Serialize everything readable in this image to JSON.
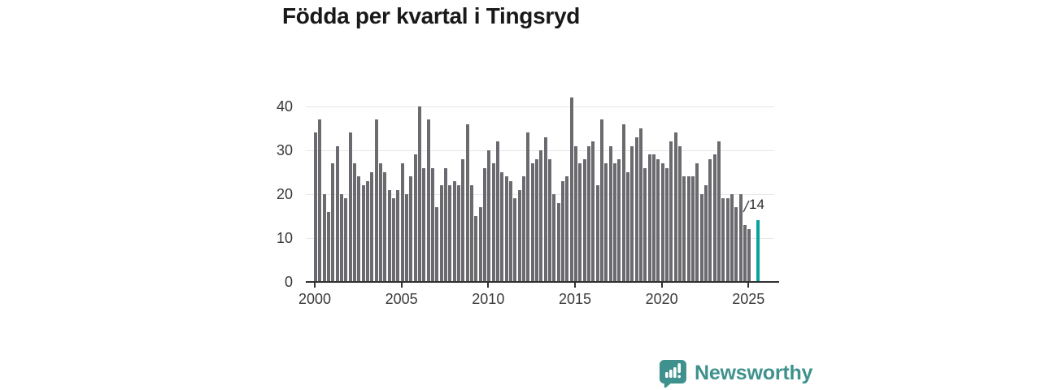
{
  "title": "Födda per kvartal i Tingsryd",
  "chart_data": {
    "type": "bar",
    "title": "Födda per kvartal i Tingsryd",
    "frequency": "quarterly",
    "start_period": "2000-Q1",
    "x_tick_labels": [
      "2000",
      "2005",
      "2010",
      "2015",
      "2020",
      "2025"
    ],
    "y_ticks": [
      0,
      10,
      20,
      30,
      40
    ],
    "ylim": [
      0,
      44
    ],
    "grid": true,
    "series": [
      {
        "name": "Födda per kvartal",
        "values": [
          34,
          37,
          20,
          16,
          27,
          31,
          20,
          19,
          34,
          27,
          24,
          22,
          23,
          25,
          37,
          27,
          25,
          21,
          19,
          21,
          27,
          20,
          24,
          29,
          40,
          26,
          37,
          26,
          17,
          22,
          26,
          22,
          23,
          22,
          28,
          36,
          22,
          15,
          17,
          26,
          30,
          27,
          32,
          25,
          24,
          23,
          19,
          21,
          24,
          34,
          27,
          28,
          30,
          33,
          28,
          20,
          18,
          23,
          24,
          42,
          31,
          27,
          28,
          31,
          32,
          22,
          37,
          27,
          31,
          27,
          28,
          36,
          25,
          31,
          33,
          35,
          26,
          29,
          29,
          28,
          27,
          26,
          32,
          34,
          31,
          24,
          24,
          24,
          27,
          20,
          22,
          28,
          29,
          32,
          19,
          19,
          20,
          17,
          20,
          13,
          12
        ]
      }
    ],
    "highlight": {
      "label": "14",
      "value": 14,
      "slot_gap_before": 1
    },
    "colors": {
      "bar": "#6a6a6f",
      "highlight": "#0aa29c",
      "grid": "#e7e7e7",
      "axis": "#303030",
      "tick_text": "#3a3a3a"
    }
  },
  "branding": {
    "name": "Newsworthy",
    "color": "#3e918c",
    "icon": "newsworthy-speech-bubble-chart-icon"
  }
}
